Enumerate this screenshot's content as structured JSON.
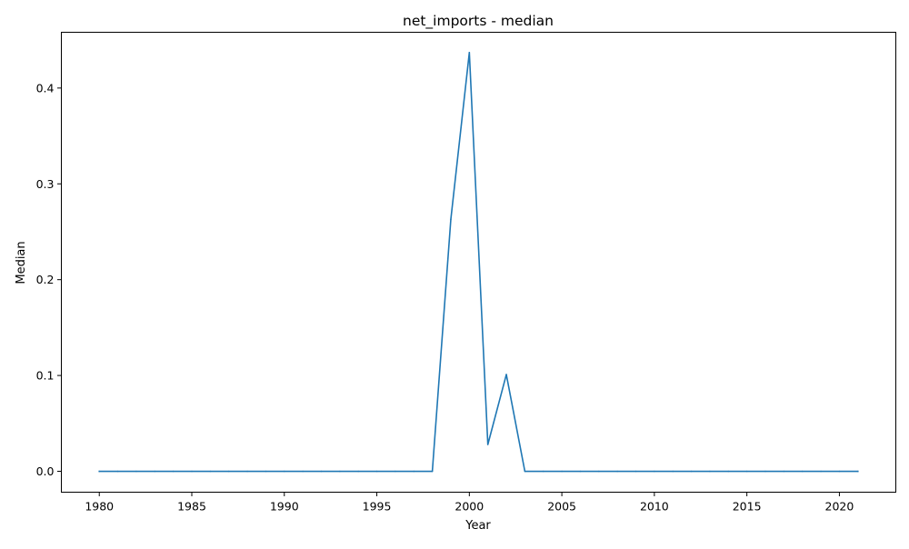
{
  "chart_data": {
    "type": "line",
    "title": "net_imports - median",
    "xlabel": "Year",
    "ylabel": "Median",
    "xlim": [
      1977.95,
      2023.05
    ],
    "ylim": [
      -0.0218,
      0.4582
    ],
    "x_ticks": [
      1980,
      1985,
      1990,
      1995,
      2000,
      2005,
      2010,
      2015,
      2020
    ],
    "y_ticks": [
      0.0,
      0.1,
      0.2,
      0.3,
      0.4
    ],
    "x_tick_labels": [
      "1980",
      "1985",
      "1990",
      "1995",
      "2000",
      "2005",
      "2010",
      "2015",
      "2020"
    ],
    "y_tick_labels": [
      "0.0",
      "0.1",
      "0.2",
      "0.3",
      "0.4"
    ],
    "grid": false,
    "legend": "none",
    "series": [
      {
        "color": "#1f77b4",
        "x": [
          1980,
          1981,
          1982,
          1983,
          1984,
          1985,
          1986,
          1987,
          1988,
          1989,
          1990,
          1991,
          1992,
          1993,
          1994,
          1995,
          1996,
          1997,
          1998,
          1999,
          2000,
          2001,
          2002,
          2003,
          2004,
          2005,
          2006,
          2007,
          2008,
          2009,
          2010,
          2011,
          2012,
          2013,
          2014,
          2015,
          2016,
          2017,
          2018,
          2019,
          2020,
          2021
        ],
        "y": [
          0,
          0,
          0,
          0,
          0,
          0,
          0,
          0,
          0,
          0,
          0,
          0,
          0,
          0,
          0,
          0,
          0,
          0,
          0,
          0.263,
          0.437,
          0.028,
          0.101,
          0,
          0,
          0,
          0,
          0,
          0,
          0,
          0,
          0,
          0,
          0,
          0,
          0,
          0,
          0,
          0,
          0,
          0,
          0
        ]
      }
    ]
  }
}
